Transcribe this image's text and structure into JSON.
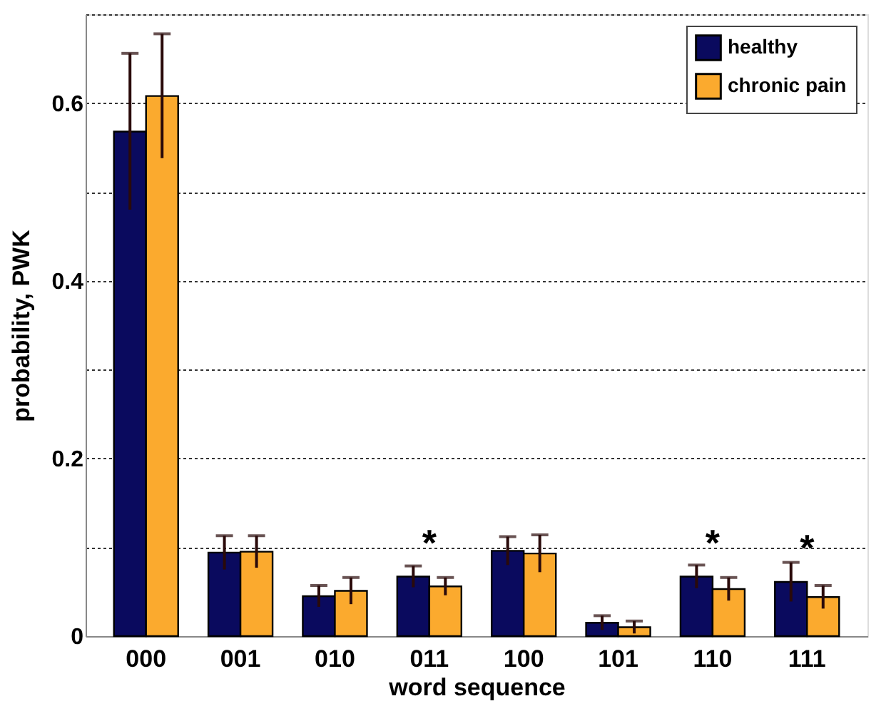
{
  "chart_data": {
    "type": "bar",
    "xlabel": "word sequence",
    "ylabel": "probability, PWK",
    "categories": [
      "000",
      "001",
      "010",
      "011",
      "100",
      "101",
      "110",
      "111"
    ],
    "series": [
      {
        "name": "healthy",
        "color": "#0a0a5e",
        "values": [
          0.568,
          0.094,
          0.045,
          0.067,
          0.096,
          0.015,
          0.067,
          0.061
        ],
        "errors": [
          0.088,
          0.019,
          0.012,
          0.012,
          0.016,
          0.008,
          0.013,
          0.022
        ]
      },
      {
        "name": "chronic pain",
        "color": "#fbaa2e",
        "values": [
          0.608,
          0.095,
          0.051,
          0.056,
          0.093,
          0.01,
          0.053,
          0.044
        ],
        "errors": [
          0.07,
          0.018,
          0.015,
          0.01,
          0.021,
          0.007,
          0.013,
          0.013
        ]
      }
    ],
    "ylim": [
      0,
      0.7
    ],
    "yticks": [
      0,
      {
        "value": 0.1,
        "label": null
      },
      0.2,
      {
        "value": 0.3,
        "label": null
      },
      0.4,
      {
        "value": 0.5,
        "label": null
      },
      0.6,
      {
        "value": 0.7,
        "label": null
      }
    ],
    "grid": "y",
    "legend": "top right",
    "annotations": [
      {
        "text": "*",
        "x": "011",
        "y": 0.067
      },
      {
        "text": "*",
        "x": "110",
        "y": 0.067
      },
      {
        "text": "*",
        "x": "111",
        "y": 0.061
      }
    ]
  }
}
